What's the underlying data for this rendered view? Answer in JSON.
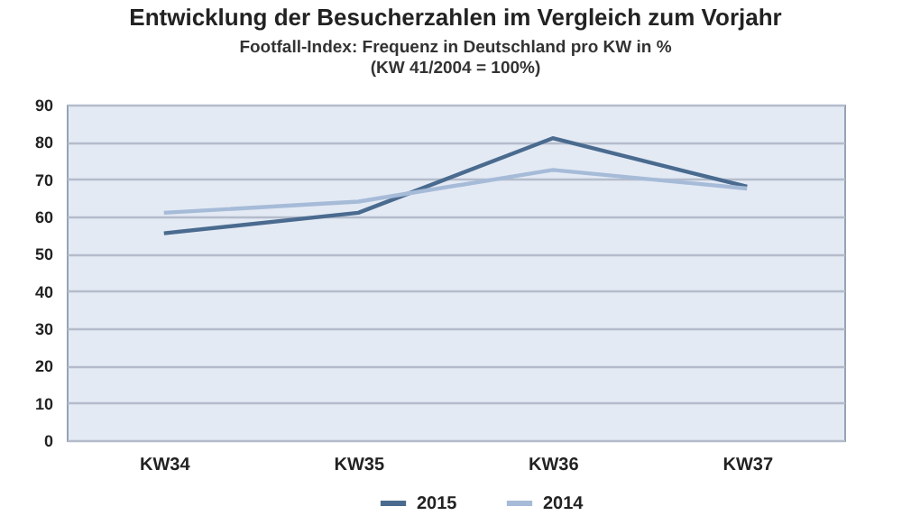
{
  "chart_data": {
    "type": "line",
    "title": "Entwicklung der Besucherzahlen im Vergleich zum Vorjahr",
    "subtitle": "Footfall-Index: Frequenz in Deutschland pro KW in %\n(KW 41/2004 = 100%)",
    "categories": [
      "KW34",
      "KW35",
      "KW36",
      "KW37"
    ],
    "series": [
      {
        "name": "2015",
        "color": "#4a6b8f",
        "values": [
          55.5,
          61,
          81,
          68
        ]
      },
      {
        "name": "2014",
        "color": "#a6bbd8",
        "values": [
          61,
          64,
          72.5,
          67.5
        ]
      }
    ],
    "ylim": [
      0,
      90
    ],
    "yticks": [
      0,
      10,
      20,
      30,
      40,
      50,
      60,
      70,
      80,
      90
    ],
    "grid": "y",
    "legend": "bottom"
  }
}
